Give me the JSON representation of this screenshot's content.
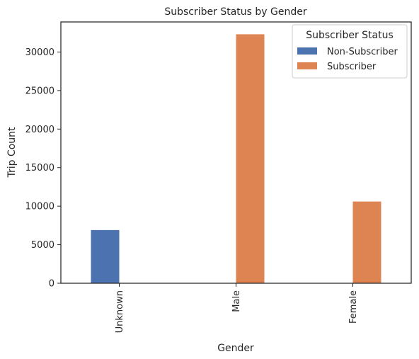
{
  "chart_data": {
    "type": "bar",
    "title": "Subscriber Status by Gender",
    "xlabel": "Gender",
    "ylabel": "Trip Count",
    "categories": [
      "Unknown",
      "Male",
      "Female"
    ],
    "series": [
      {
        "name": "Non-Subscriber",
        "color": "#4c72b0",
        "values": [
          6900,
          0,
          0
        ]
      },
      {
        "name": "Subscriber",
        "color": "#dd8452",
        "values": [
          0,
          32300,
          10600
        ]
      }
    ],
    "ylim": [
      0,
      33900
    ],
    "yticks": [
      0,
      5000,
      10000,
      15000,
      20000,
      25000,
      30000
    ],
    "legend": {
      "title": "Subscriber Status",
      "placement": "top-right"
    },
    "grid": false
  }
}
